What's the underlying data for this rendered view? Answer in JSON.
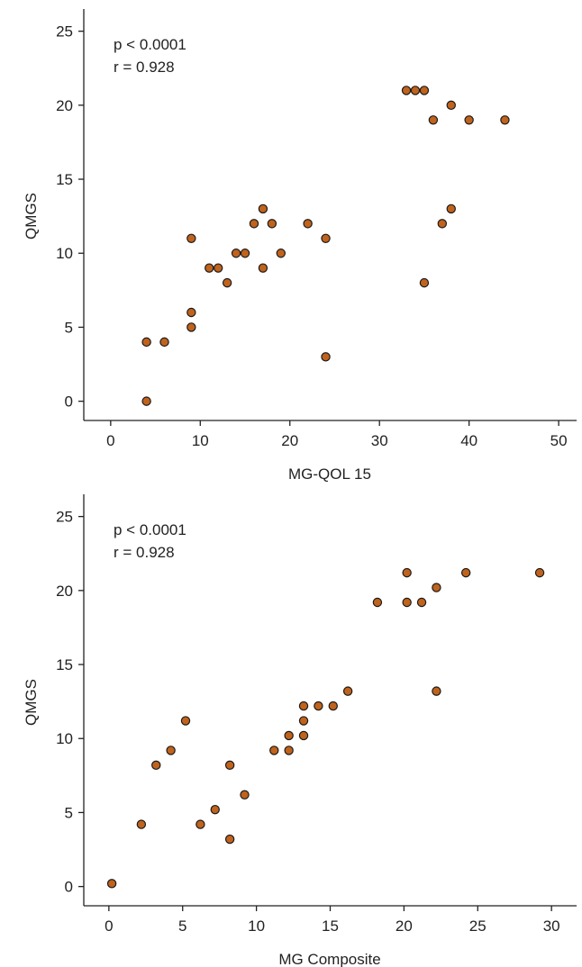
{
  "colors": {
    "marker_fill": "#c0631c",
    "marker_edge": "#1a1a1a",
    "axis": "#222222"
  },
  "chart_data": [
    {
      "type": "scatter",
      "xlabel": "MG-QOL 15",
      "ylabel": "QMGS",
      "xlim": [
        -3,
        52
      ],
      "ylim": [
        -1.3,
        26.5
      ],
      "xticks": [
        0,
        10,
        20,
        30,
        40,
        50
      ],
      "yticks": [
        0,
        5,
        10,
        15,
        20,
        25
      ],
      "annotations": [
        "p < 0.0001",
        "r = 0.928"
      ],
      "grid": false,
      "series": [
        {
          "x": [
            4,
            4,
            6,
            9,
            9,
            9,
            11,
            12,
            13,
            14,
            15,
            16,
            17,
            17,
            18,
            19,
            22,
            24,
            24,
            33,
            34,
            35,
            35,
            36,
            37,
            38,
            38,
            40,
            44
          ],
          "y": [
            0,
            4,
            4,
            5,
            6,
            11,
            9,
            9,
            8,
            10,
            10,
            12,
            9,
            13,
            12,
            10,
            12,
            11,
            3,
            21,
            21,
            21,
            8,
            19,
            12,
            13,
            20,
            19,
            19
          ]
        }
      ]
    },
    {
      "type": "scatter",
      "xlabel": "MG Composite",
      "ylabel": "QMGS",
      "xlim": [
        -1.7,
        31.7
      ],
      "ylim": [
        -1.3,
        26.5
      ],
      "xticks": [
        0,
        5,
        10,
        15,
        20,
        25,
        30
      ],
      "yticks": [
        0,
        5,
        10,
        15,
        20,
        25
      ],
      "annotations": [
        "p < 0.0001",
        "r = 0.928"
      ],
      "grid": false,
      "series": [
        {
          "x": [
            0.2,
            2.2,
            3.2,
            4.2,
            5.2,
            6.2,
            7.2,
            8.2,
            8.2,
            9.2,
            11.2,
            12.2,
            12.2,
            13.2,
            13.2,
            13.2,
            14.2,
            15.2,
            16.2,
            18.2,
            20.2,
            20.2,
            21.2,
            22.2,
            22.2,
            24.2,
            29.2
          ],
          "y": [
            0.2,
            4.2,
            8.2,
            9.2,
            11.2,
            4.2,
            5.2,
            8.2,
            3.2,
            6.2,
            9.2,
            9.2,
            10.2,
            10.2,
            11.2,
            12.2,
            12.2,
            12.2,
            13.2,
            19.2,
            21.2,
            19.2,
            19.2,
            20.2,
            13.2,
            21.2,
            21.2
          ]
        }
      ]
    }
  ]
}
